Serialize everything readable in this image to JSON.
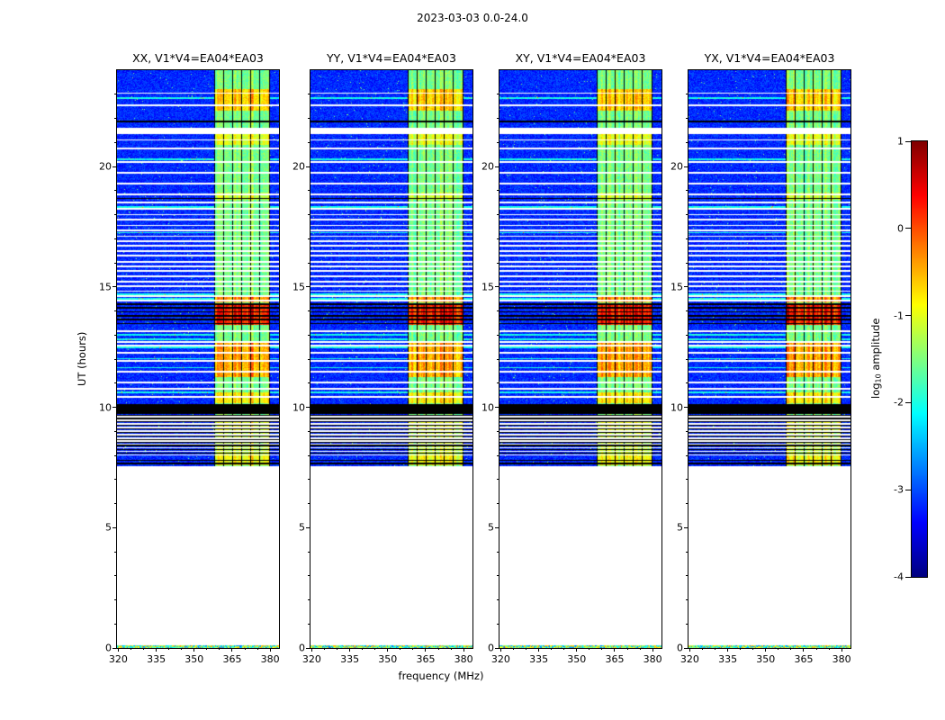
{
  "chart_data": {
    "type": "heatmap",
    "title": "2023-03-03 0.0-24.0",
    "xlabel": "frequency (MHz)",
    "ylabel": "UT (hours)",
    "xlim": [
      319.5,
      383.5
    ],
    "ylim": [
      0,
      24
    ],
    "xticks": [
      320,
      335,
      350,
      365,
      380
    ],
    "xticks_minor_step": 5,
    "yticks": [
      0,
      5,
      10,
      15,
      20
    ],
    "yticks_minor_step": 1,
    "colormap": "jet",
    "panels": [
      {
        "title": "XX, V1*V4=EA04*EA03",
        "seed": 11
      },
      {
        "title": "YY, V1*V4=EA04*EA03",
        "seed": 47
      },
      {
        "title": "XY, V1*V4=EA04*EA03",
        "seed": 83
      },
      {
        "title": "YX, V1*V4=EA04*EA03",
        "seed": 129
      }
    ],
    "colorbar": {
      "label_prefix": "log",
      "label_sub": "10",
      "label_suffix": " amplitude",
      "ticks": [
        1,
        0,
        -1,
        -2,
        -3,
        -4
      ],
      "vmin": -4,
      "vmax": 1
    },
    "data_model": {
      "data_start_hour": 7.55,
      "bottom_strip_hour": 0.12,
      "background_level": -3.45,
      "background_noise": 0.55,
      "speckle_chance": 0.006,
      "speckle_boost": 1.4,
      "rfi_band": {
        "f0": 358.0,
        "f1": 379.8,
        "level": -1.85,
        "profile_amp": 0.85,
        "noise": 0.5
      },
      "flagged_channels": [
        358.0,
        361.6,
        365.2,
        368.8,
        372.4,
        376.0,
        379.8
      ],
      "band_events": [
        [
          13.42,
          14.32,
          1.7
        ],
        [
          14.35,
          14.6,
          1.15
        ],
        [
          11.25,
          12.7,
          1.05
        ],
        [
          10.15,
          10.62,
          0.7
        ],
        [
          22.3,
          23.2,
          0.85
        ],
        [
          20.9,
          21.35,
          0.5
        ],
        [
          7.6,
          8.05,
          0.6
        ],
        [
          9.0,
          9.7,
          0.5
        ],
        [
          8.05,
          9.0,
          0.35
        ],
        [
          18.6,
          18.9,
          0.4
        ]
      ],
      "cyan_rows": [
        10.62,
        11.65,
        12.02,
        12.48,
        12.82,
        13.02,
        14.5,
        14.68,
        17.25,
        18.32,
        20.3,
        22.85
      ],
      "white_gaps_thin": [
        8.02,
        8.17,
        8.32,
        8.47,
        8.6,
        8.72,
        8.87,
        9.02,
        9.17,
        9.32,
        9.47,
        9.6,
        10.42,
        10.77,
        11.02,
        11.47,
        11.92,
        12.27,
        12.57,
        12.72,
        13.17,
        14.42,
        14.62,
        14.82,
        15.02,
        15.22,
        15.45,
        15.65,
        15.85,
        16.05,
        16.3,
        16.5,
        16.7,
        16.9,
        17.1,
        17.35,
        17.55,
        17.78,
        18.0,
        18.25,
        18.5,
        18.85,
        19.3,
        19.75,
        20.2,
        20.75,
        21.1,
        22.55,
        23.05
      ],
      "white_gaps_thick": [
        [
          21.35,
          21.62
        ]
      ],
      "black_lines_thin": [
        7.66,
        7.8,
        8.1,
        8.25,
        8.4,
        8.54,
        8.66,
        8.8,
        8.95,
        9.1,
        9.25,
        9.4,
        9.54,
        9.66,
        13.48,
        13.64,
        13.8,
        13.96,
        14.12,
        14.28,
        18.68,
        21.88
      ],
      "black_lines_thick": [
        [
          9.72,
          10.12
        ]
      ],
      "bottom_strip_level": -2.9,
      "bottom_strip_noise": 2.6
    }
  }
}
